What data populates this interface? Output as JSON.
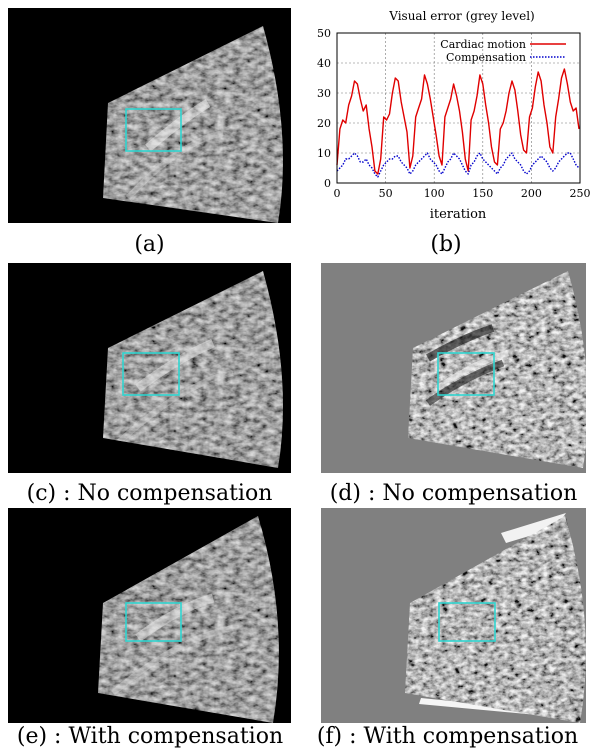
{
  "captions": {
    "a": "(a)",
    "b": "(b)",
    "c": "(c) : No compensation",
    "d": "(d) : No compensation",
    "e": "(e) : With compensation",
    "f": "(f) : With compensation"
  },
  "colors": {
    "roi_box": "#30d5d0",
    "cardiac": "#e00000",
    "compensation": "#0000cc",
    "grid": "#777777",
    "ultrasound_bg": "#000000",
    "difference_bg": "#808080"
  },
  "chart_data": {
    "type": "line",
    "title": "Visual error (grey level)",
    "xlabel": "iteration",
    "ylabel": "",
    "xlim": [
      0,
      250
    ],
    "ylim": [
      0,
      50
    ],
    "xticks": [
      0,
      50,
      100,
      150,
      200,
      250
    ],
    "yticks": [
      0,
      10,
      20,
      30,
      40,
      50
    ],
    "grid": true,
    "legend_position": "top-right",
    "series": [
      {
        "name": "Cardiac motion",
        "style": "solid",
        "x": [
          0,
          3,
          6,
          9,
          12,
          15,
          18,
          21,
          24,
          27,
          30,
          33,
          36,
          39,
          42,
          45,
          48,
          51,
          54,
          57,
          60,
          63,
          66,
          69,
          72,
          75,
          78,
          81,
          84,
          87,
          90,
          93,
          96,
          99,
          102,
          105,
          108,
          111,
          114,
          117,
          120,
          123,
          126,
          129,
          132,
          135,
          138,
          141,
          144,
          147,
          150,
          153,
          156,
          159,
          162,
          165,
          168,
          171,
          174,
          177,
          180,
          183,
          186,
          189,
          192,
          195,
          198,
          201,
          204,
          207,
          210,
          213,
          216,
          219,
          222,
          225,
          228,
          231,
          234,
          237,
          240,
          243,
          246,
          249
        ],
        "values": [
          6,
          18,
          21,
          20,
          26,
          29,
          34,
          33,
          28,
          24,
          26,
          18,
          12,
          4,
          3,
          8,
          22,
          21,
          23,
          30,
          35,
          34,
          27,
          22,
          17,
          5,
          9,
          22,
          25,
          28,
          36,
          33,
          28,
          22,
          16,
          9,
          6,
          22,
          25,
          28,
          33,
          29,
          24,
          17,
          8,
          4,
          21,
          24,
          29,
          36,
          33,
          26,
          20,
          12,
          7,
          6,
          18,
          20,
          24,
          30,
          34,
          31,
          24,
          16,
          11,
          10,
          22,
          25,
          32,
          37,
          34,
          26,
          20,
          12,
          10,
          22,
          28,
          35,
          38,
          33,
          27,
          24,
          25,
          18
        ]
      },
      {
        "name": "Compensation",
        "style": "dotted",
        "x": [
          0,
          3,
          6,
          9,
          12,
          15,
          18,
          21,
          24,
          27,
          30,
          33,
          36,
          39,
          42,
          45,
          48,
          51,
          54,
          57,
          60,
          63,
          66,
          69,
          72,
          75,
          78,
          81,
          84,
          87,
          90,
          93,
          96,
          99,
          102,
          105,
          108,
          111,
          114,
          117,
          120,
          123,
          126,
          129,
          132,
          135,
          138,
          141,
          144,
          147,
          150,
          153,
          156,
          159,
          162,
          165,
          168,
          171,
          174,
          177,
          180,
          183,
          186,
          189,
          192,
          195,
          198,
          201,
          204,
          207,
          210,
          213,
          216,
          219,
          222,
          225,
          228,
          231,
          234,
          237,
          240,
          243,
          246,
          249
        ],
        "values": [
          4,
          5,
          6,
          8,
          8,
          9,
          10,
          9,
          7,
          7,
          8,
          6,
          5,
          3,
          2,
          4,
          6,
          7,
          8,
          8,
          9,
          9,
          7,
          6,
          5,
          3,
          4,
          6,
          7,
          8,
          9,
          10,
          8,
          7,
          6,
          4,
          3,
          5,
          7,
          8,
          10,
          9,
          8,
          6,
          4,
          3,
          6,
          7,
          9,
          10,
          8,
          7,
          6,
          5,
          4,
          3,
          5,
          6,
          8,
          9,
          10,
          8,
          7,
          6,
          4,
          3,
          4,
          6,
          7,
          8,
          9,
          8,
          7,
          5,
          4,
          5,
          7,
          8,
          9,
          10,
          10,
          8,
          6,
          5
        ]
      }
    ]
  }
}
